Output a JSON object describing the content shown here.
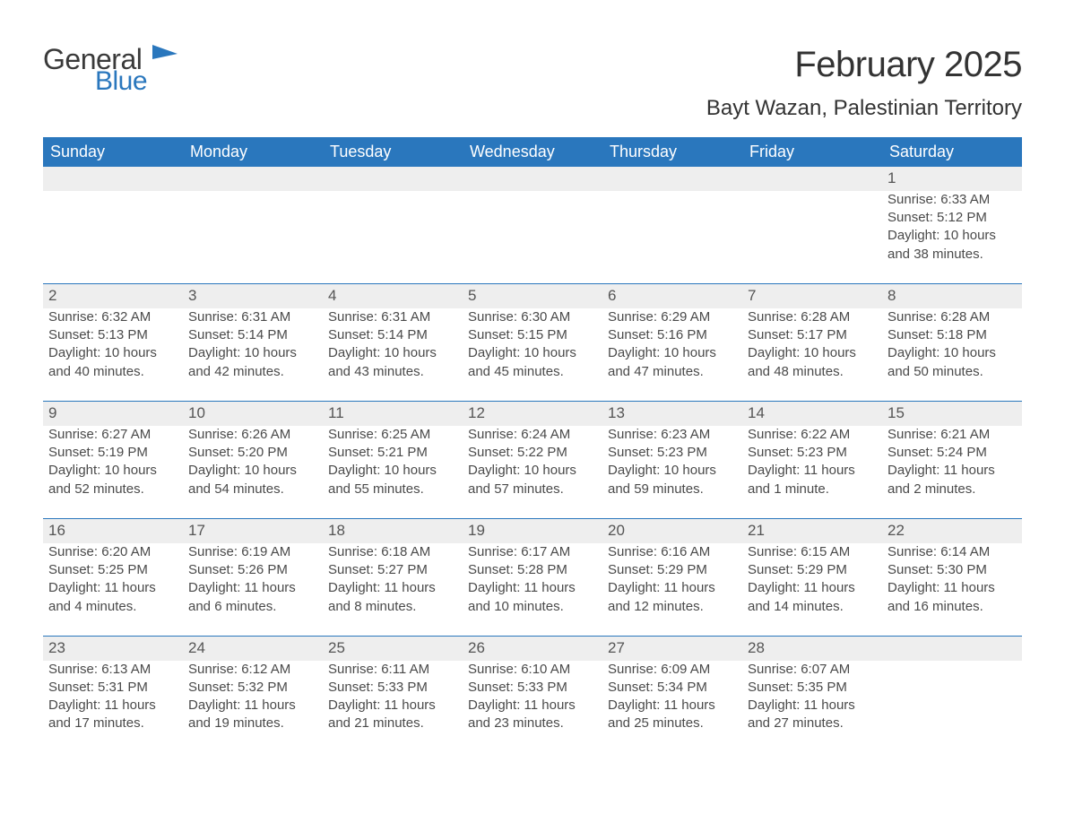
{
  "logo": {
    "word1": "General",
    "word2": "Blue",
    "icon_color": "#2a77bd"
  },
  "title": "February 2025",
  "location": "Bayt Wazan, Palestinian Territory",
  "colors": {
    "header_bg": "#2a77bd",
    "header_fg": "#ffffff",
    "stripe_bg": "#eeeeee",
    "stripe_border": "#2a77bd",
    "text": "#4a4a4a"
  },
  "weekdays": [
    "Sunday",
    "Monday",
    "Tuesday",
    "Wednesday",
    "Thursday",
    "Friday",
    "Saturday"
  ],
  "weeks": [
    [
      null,
      null,
      null,
      null,
      null,
      null,
      {
        "n": "1",
        "sr": "Sunrise: 6:33 AM",
        "ss": "Sunset: 5:12 PM",
        "d1": "Daylight: 10 hours",
        "d2": "and 38 minutes."
      }
    ],
    [
      {
        "n": "2",
        "sr": "Sunrise: 6:32 AM",
        "ss": "Sunset: 5:13 PM",
        "d1": "Daylight: 10 hours",
        "d2": "and 40 minutes."
      },
      {
        "n": "3",
        "sr": "Sunrise: 6:31 AM",
        "ss": "Sunset: 5:14 PM",
        "d1": "Daylight: 10 hours",
        "d2": "and 42 minutes."
      },
      {
        "n": "4",
        "sr": "Sunrise: 6:31 AM",
        "ss": "Sunset: 5:14 PM",
        "d1": "Daylight: 10 hours",
        "d2": "and 43 minutes."
      },
      {
        "n": "5",
        "sr": "Sunrise: 6:30 AM",
        "ss": "Sunset: 5:15 PM",
        "d1": "Daylight: 10 hours",
        "d2": "and 45 minutes."
      },
      {
        "n": "6",
        "sr": "Sunrise: 6:29 AM",
        "ss": "Sunset: 5:16 PM",
        "d1": "Daylight: 10 hours",
        "d2": "and 47 minutes."
      },
      {
        "n": "7",
        "sr": "Sunrise: 6:28 AM",
        "ss": "Sunset: 5:17 PM",
        "d1": "Daylight: 10 hours",
        "d2": "and 48 minutes."
      },
      {
        "n": "8",
        "sr": "Sunrise: 6:28 AM",
        "ss": "Sunset: 5:18 PM",
        "d1": "Daylight: 10 hours",
        "d2": "and 50 minutes."
      }
    ],
    [
      {
        "n": "9",
        "sr": "Sunrise: 6:27 AM",
        "ss": "Sunset: 5:19 PM",
        "d1": "Daylight: 10 hours",
        "d2": "and 52 minutes."
      },
      {
        "n": "10",
        "sr": "Sunrise: 6:26 AM",
        "ss": "Sunset: 5:20 PM",
        "d1": "Daylight: 10 hours",
        "d2": "and 54 minutes."
      },
      {
        "n": "11",
        "sr": "Sunrise: 6:25 AM",
        "ss": "Sunset: 5:21 PM",
        "d1": "Daylight: 10 hours",
        "d2": "and 55 minutes."
      },
      {
        "n": "12",
        "sr": "Sunrise: 6:24 AM",
        "ss": "Sunset: 5:22 PM",
        "d1": "Daylight: 10 hours",
        "d2": "and 57 minutes."
      },
      {
        "n": "13",
        "sr": "Sunrise: 6:23 AM",
        "ss": "Sunset: 5:23 PM",
        "d1": "Daylight: 10 hours",
        "d2": "and 59 minutes."
      },
      {
        "n": "14",
        "sr": "Sunrise: 6:22 AM",
        "ss": "Sunset: 5:23 PM",
        "d1": "Daylight: 11 hours",
        "d2": "and 1 minute."
      },
      {
        "n": "15",
        "sr": "Sunrise: 6:21 AM",
        "ss": "Sunset: 5:24 PM",
        "d1": "Daylight: 11 hours",
        "d2": "and 2 minutes."
      }
    ],
    [
      {
        "n": "16",
        "sr": "Sunrise: 6:20 AM",
        "ss": "Sunset: 5:25 PM",
        "d1": "Daylight: 11 hours",
        "d2": "and 4 minutes."
      },
      {
        "n": "17",
        "sr": "Sunrise: 6:19 AM",
        "ss": "Sunset: 5:26 PM",
        "d1": "Daylight: 11 hours",
        "d2": "and 6 minutes."
      },
      {
        "n": "18",
        "sr": "Sunrise: 6:18 AM",
        "ss": "Sunset: 5:27 PM",
        "d1": "Daylight: 11 hours",
        "d2": "and 8 minutes."
      },
      {
        "n": "19",
        "sr": "Sunrise: 6:17 AM",
        "ss": "Sunset: 5:28 PM",
        "d1": "Daylight: 11 hours",
        "d2": "and 10 minutes."
      },
      {
        "n": "20",
        "sr": "Sunrise: 6:16 AM",
        "ss": "Sunset: 5:29 PM",
        "d1": "Daylight: 11 hours",
        "d2": "and 12 minutes."
      },
      {
        "n": "21",
        "sr": "Sunrise: 6:15 AM",
        "ss": "Sunset: 5:29 PM",
        "d1": "Daylight: 11 hours",
        "d2": "and 14 minutes."
      },
      {
        "n": "22",
        "sr": "Sunrise: 6:14 AM",
        "ss": "Sunset: 5:30 PM",
        "d1": "Daylight: 11 hours",
        "d2": "and 16 minutes."
      }
    ],
    [
      {
        "n": "23",
        "sr": "Sunrise: 6:13 AM",
        "ss": "Sunset: 5:31 PM",
        "d1": "Daylight: 11 hours",
        "d2": "and 17 minutes."
      },
      {
        "n": "24",
        "sr": "Sunrise: 6:12 AM",
        "ss": "Sunset: 5:32 PM",
        "d1": "Daylight: 11 hours",
        "d2": "and 19 minutes."
      },
      {
        "n": "25",
        "sr": "Sunrise: 6:11 AM",
        "ss": "Sunset: 5:33 PM",
        "d1": "Daylight: 11 hours",
        "d2": "and 21 minutes."
      },
      {
        "n": "26",
        "sr": "Sunrise: 6:10 AM",
        "ss": "Sunset: 5:33 PM",
        "d1": "Daylight: 11 hours",
        "d2": "and 23 minutes."
      },
      {
        "n": "27",
        "sr": "Sunrise: 6:09 AM",
        "ss": "Sunset: 5:34 PM",
        "d1": "Daylight: 11 hours",
        "d2": "and 25 minutes."
      },
      {
        "n": "28",
        "sr": "Sunrise: 6:07 AM",
        "ss": "Sunset: 5:35 PM",
        "d1": "Daylight: 11 hours",
        "d2": "and 27 minutes."
      },
      null
    ]
  ]
}
